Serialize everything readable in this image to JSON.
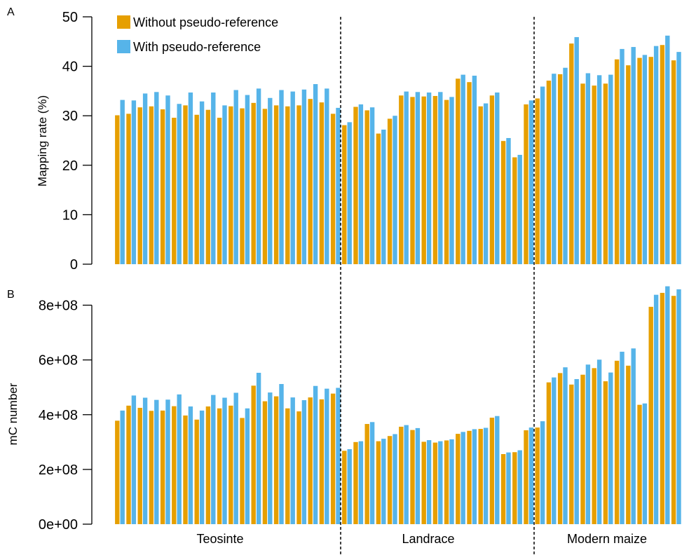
{
  "colors": {
    "without": "#E69F00",
    "with": "#56B4E9",
    "axis": "#000000",
    "divider": "#000000"
  },
  "legend": [
    {
      "label": "Without pseudo-reference",
      "color": "#E69F00"
    },
    {
      "label": "With pseudo-reference",
      "color": "#56B4E9"
    }
  ],
  "groups": [
    "Teosinte",
    "Landrace",
    "Modern maize"
  ],
  "chart_data": [
    {
      "type": "bar",
      "panel": "A",
      "ylabel": "Mapping rate (%)",
      "ylim": [
        0,
        50
      ],
      "yticks": [
        0,
        10,
        20,
        30,
        40,
        50
      ],
      "ytick_labels": [
        "0",
        "10",
        "20",
        "30",
        "40",
        "50"
      ],
      "legend_position": "top-left",
      "group_sizes": [
        20,
        17,
        13
      ],
      "series": [
        {
          "name": "Without pseudo-reference",
          "values": [
            30.1,
            30.4,
            31.7,
            31.9,
            31.3,
            29.6,
            32.1,
            30.2,
            31.2,
            29.6,
            31.9,
            31.5,
            32.6,
            31.4,
            32.1,
            31.9,
            32.1,
            33.4,
            32.7,
            30.4,
            28.1,
            31.8,
            31.1,
            26.4,
            29.4,
            34.1,
            33.8,
            33.9,
            34.0,
            33.2,
            37.5,
            36.8,
            31.9,
            34.1,
            24.9,
            21.6,
            32.3,
            33.5,
            37.1,
            38.4,
            44.6,
            36.5,
            36.1,
            36.5,
            41.4,
            40.2,
            41.7,
            41.9,
            44.3,
            41.2
          ]
        },
        {
          "name": "With pseudo-reference",
          "values": [
            33.2,
            33.1,
            34.5,
            34.8,
            34.1,
            32.4,
            34.7,
            32.9,
            34.7,
            32.1,
            35.2,
            34.2,
            35.5,
            33.6,
            35.2,
            34.9,
            35.3,
            36.4,
            35.5,
            31.6,
            28.7,
            32.3,
            31.7,
            27.2,
            30.0,
            34.9,
            34.8,
            34.7,
            34.8,
            33.8,
            38.3,
            38.1,
            32.5,
            34.7,
            25.5,
            22.1,
            33.1,
            35.9,
            38.5,
            39.7,
            45.9,
            38.6,
            38.2,
            38.3,
            43.5,
            43.9,
            42.3,
            44.1,
            46.2,
            42.9
          ]
        }
      ]
    },
    {
      "type": "bar",
      "panel": "B",
      "ylabel": "mC number",
      "ylim": [
        0,
        900000000
      ],
      "yticks": [
        0,
        200000000,
        400000000,
        600000000,
        800000000
      ],
      "ytick_labels": [
        "0e+00",
        "2e+08",
        "4e+08",
        "6e+08",
        "8e+08"
      ],
      "group_sizes": [
        20,
        17,
        13
      ],
      "series": [
        {
          "name": "Without pseudo-reference",
          "values": [
            378000000,
            433000000,
            425000000,
            414000000,
            415000000,
            431000000,
            397000000,
            382000000,
            430000000,
            423000000,
            433000000,
            388000000,
            506000000,
            449000000,
            467000000,
            423000000,
            412000000,
            463000000,
            456000000,
            477000000,
            268000000,
            300000000,
            366000000,
            303000000,
            322000000,
            356000000,
            344000000,
            301000000,
            298000000,
            306000000,
            330000000,
            341000000,
            348000000,
            389000000,
            256000000,
            263000000,
            343000000,
            353000000,
            518000000,
            552000000,
            510000000,
            546000000,
            570000000,
            522000000,
            597000000,
            579000000,
            436000000,
            794000000,
            845000000,
            834000000
          ]
        },
        {
          "name": "With pseudo-reference",
          "values": [
            415000000,
            470000000,
            462000000,
            454000000,
            455000000,
            474000000,
            430000000,
            415000000,
            472000000,
            462000000,
            480000000,
            423000000,
            553000000,
            481000000,
            512000000,
            463000000,
            453000000,
            505000000,
            495000000,
            498000000,
            274000000,
            303000000,
            373000000,
            312000000,
            329000000,
            362000000,
            351000000,
            307000000,
            303000000,
            310000000,
            337000000,
            347000000,
            352000000,
            395000000,
            262000000,
            270000000,
            353000000,
            376000000,
            536000000,
            573000000,
            530000000,
            583000000,
            601000000,
            554000000,
            630000000,
            642000000,
            441000000,
            838000000,
            869000000,
            858000000
          ]
        }
      ]
    }
  ]
}
